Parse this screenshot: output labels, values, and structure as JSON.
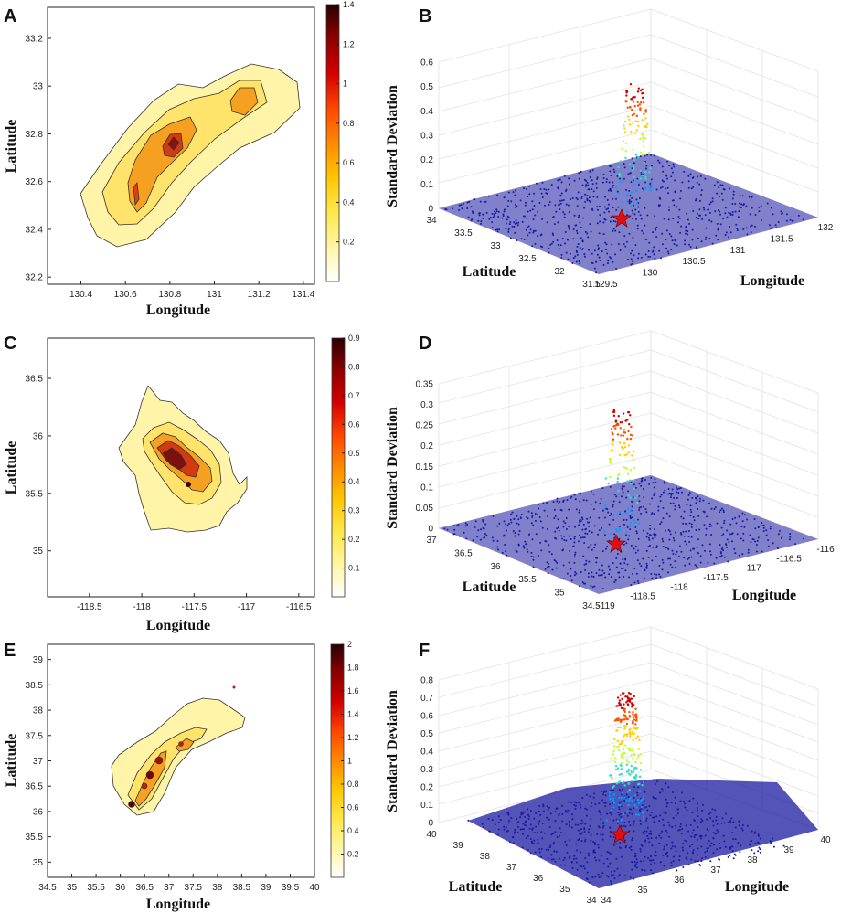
{
  "chart_data": [
    {
      "panel": "A",
      "type": "contour",
      "xlabel": "Longitude",
      "ylabel": "Latitude",
      "xticks": [
        "130.4",
        "130.6",
        "130.8",
        "131",
        "131.2",
        "131.4"
      ],
      "yticks": [
        "32.2",
        "32.4",
        "32.6",
        "32.8",
        "33",
        "33.2"
      ],
      "xlim": [
        130.25,
        131.45
      ],
      "ylim": [
        32.17,
        33.33
      ],
      "colorbar": {
        "min": 0,
        "max": 1.4,
        "ticks": [
          "0.2",
          "0.4",
          "0.6",
          "0.8",
          "1",
          "1.2",
          "1.4"
        ]
      }
    },
    {
      "panel": "B",
      "type": "scatter3d",
      "zlabel": "Standard Deviation",
      "xlabel": "Longitude",
      "ylabel": "Latitude",
      "zticks": [
        "0",
        "0.1",
        "0.2",
        "0.3",
        "0.4",
        "0.5",
        "0.6"
      ],
      "lonticks": [
        "129.5",
        "130",
        "130.5",
        "131",
        "131.5",
        "132"
      ],
      "latticks": [
        "34",
        "33.5",
        "33",
        "32.5",
        "32",
        "31.5"
      ],
      "zlim": [
        0,
        0.6
      ],
      "lonlim": [
        129.5,
        132
      ],
      "latlim": [
        31.5,
        34
      ],
      "star": "epicenter"
    },
    {
      "panel": "C",
      "type": "contour",
      "xlabel": "Longitude",
      "ylabel": "Latitude",
      "xticks": [
        "-118.5",
        "-118",
        "-117.5",
        "-117",
        "-116.5"
      ],
      "yticks": [
        "35",
        "35.5",
        "36",
        "36.5"
      ],
      "xlim": [
        -118.9,
        -116.35
      ],
      "ylim": [
        34.6,
        36.85
      ],
      "colorbar": {
        "min": 0,
        "max": 0.9,
        "ticks": [
          "0.1",
          "0.2",
          "0.3",
          "0.4",
          "0.5",
          "0.6",
          "0.7",
          "0.8",
          "0.9"
        ]
      }
    },
    {
      "panel": "D",
      "type": "scatter3d",
      "zlabel": "Standard Deviation",
      "xlabel": "Longitude",
      "ylabel": "Latitude",
      "zticks": [
        "0",
        "0.05",
        "0.1",
        "0.15",
        "0.2",
        "0.25",
        "0.3",
        "0.35"
      ],
      "lonticks": [
        "-119",
        "-118.5",
        "-118",
        "-117.5",
        "-117",
        "-116.5",
        "-116"
      ],
      "latticks": [
        "37",
        "36.5",
        "36",
        "35.5",
        "35",
        "34.5"
      ],
      "zlim": [
        0,
        0.35
      ],
      "lonlim": [
        -119,
        -116
      ],
      "latlim": [
        34.5,
        37
      ],
      "star": "epicenter"
    },
    {
      "panel": "E",
      "type": "contour",
      "xlabel": "Longitude",
      "ylabel": "Latitude",
      "xticks": [
        "34.5",
        "35",
        "35.5",
        "36",
        "36.5",
        "37",
        "37.5",
        "38",
        "38.5",
        "39",
        "39.5",
        "40"
      ],
      "yticks": [
        "35",
        "35.5",
        "36",
        "36.5",
        "37",
        "37.5",
        "38",
        "38.5",
        "39"
      ],
      "xlim": [
        34.5,
        40
      ],
      "ylim": [
        34.7,
        39.3
      ],
      "colorbar": {
        "min": 0,
        "max": 2,
        "ticks": [
          "0.2",
          "0.4",
          "0.6",
          "0.8",
          "1",
          "1.2",
          "1.4",
          "1.6",
          "1.8",
          "2"
        ]
      }
    },
    {
      "panel": "F",
      "type": "scatter3d",
      "zlabel": "Standard Deviation",
      "xlabel": "Longitude",
      "ylabel": "Latitude",
      "zticks": [
        "0",
        "0.1",
        "0.2",
        "0.3",
        "0.4",
        "0.5",
        "0.6",
        "0.7",
        "0.8"
      ],
      "lonticks": [
        "34",
        "35",
        "36",
        "37",
        "38",
        "39",
        "40"
      ],
      "latticks": [
        "40",
        "39",
        "38",
        "37",
        "36",
        "35",
        "34"
      ],
      "zlim": [
        0,
        0.8
      ],
      "lonlim": [
        34,
        40
      ],
      "latlim": [
        34,
        40
      ],
      "star": "epicenter"
    }
  ],
  "colors": {
    "colormap": [
      "#ffffff",
      "#fff6a8",
      "#ffe84a",
      "#ffc500",
      "#ff8a00",
      "#ff4a00",
      "#d40000",
      "#8b0000",
      "#2a0000"
    ],
    "fill_band_1": "#fff4a8",
    "fill_band_2": "#ffe36a",
    "fill_band_3": "#fbd03a",
    "fill_band_4": "#f5a020",
    "fill_band_5": "#e04010",
    "fill_band_6": "#9b1010",
    "mesh_dots": "#1a1aa0",
    "star": "#e01010"
  }
}
